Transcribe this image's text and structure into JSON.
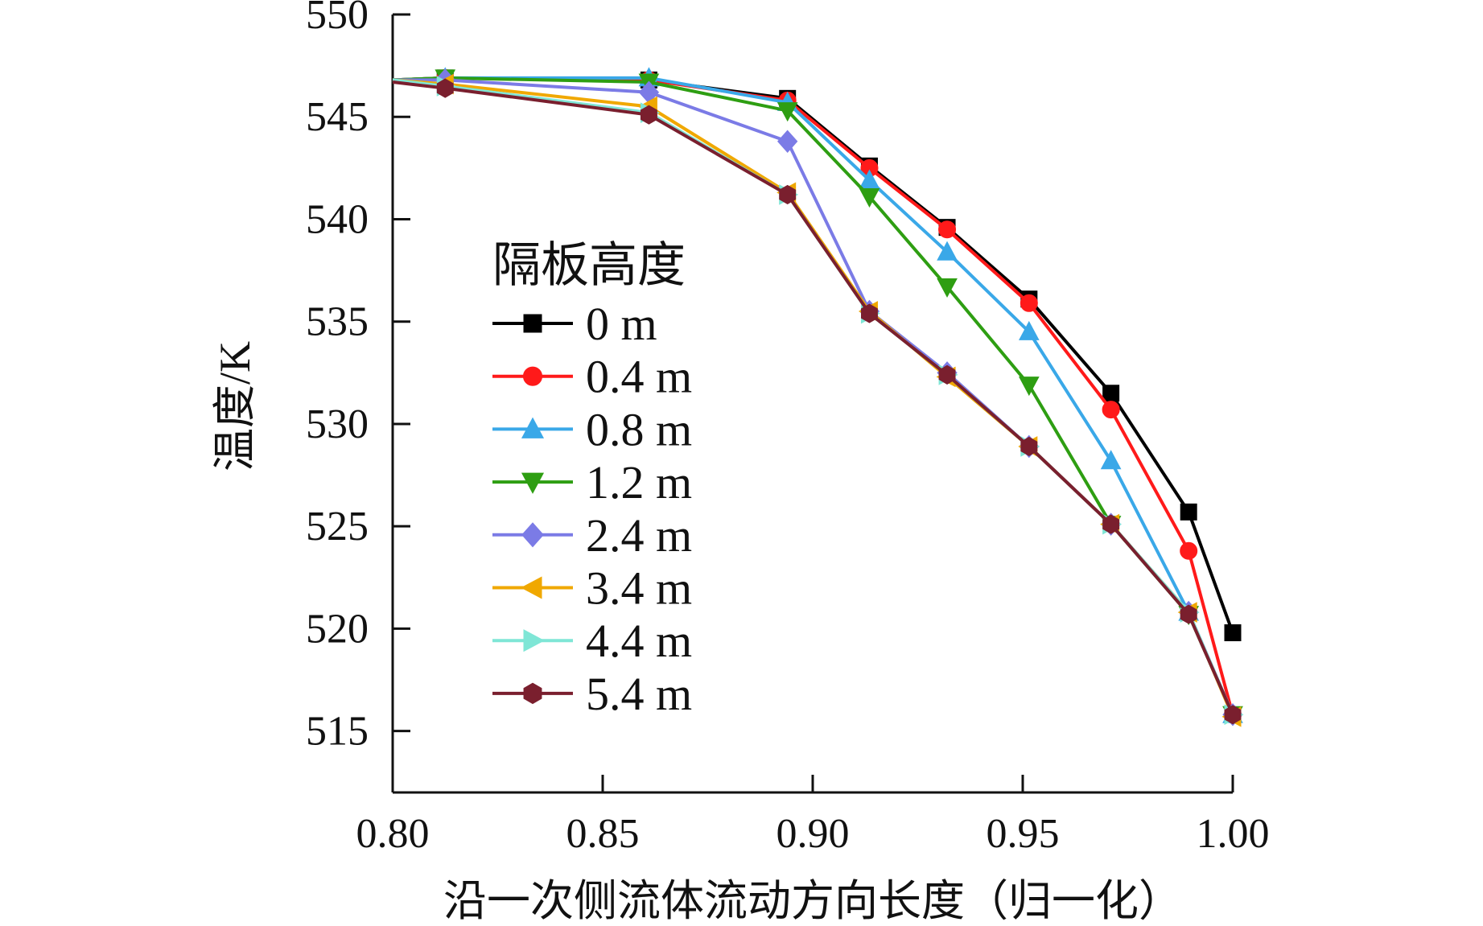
{
  "chart_data": {
    "type": "line",
    "title": "",
    "xlabel": "沿一次侧流体流动方向长度（归一化）",
    "ylabel": "温度/K",
    "xlim": [
      0.8,
      1.0
    ],
    "ylim": [
      512,
      550
    ],
    "xticks": [
      "0.80",
      "0.85",
      "0.90",
      "0.95",
      "1.00"
    ],
    "yticks": [
      "515",
      "520",
      "525",
      "530",
      "535",
      "540",
      "545",
      "550"
    ],
    "grid": false,
    "legend_title": "隔板高度",
    "legend_position": "center-left",
    "x": [
      0.8,
      0.8125,
      0.861,
      0.894,
      0.9135,
      0.932,
      0.9515,
      0.971,
      0.9895,
      1.0
    ],
    "series": [
      {
        "name": "0 m",
        "color": "#000000",
        "marker": "square",
        "values": [
          546.8,
          546.9,
          546.8,
          545.9,
          542.6,
          539.6,
          536.1,
          531.5,
          525.7,
          519.8
        ]
      },
      {
        "name": "0.4 m",
        "color": "#ff1a1a",
        "marker": "circle",
        "values": [
          546.8,
          546.9,
          546.8,
          545.8,
          542.5,
          539.5,
          535.9,
          530.7,
          523.8,
          515.8
        ]
      },
      {
        "name": "0.8 m",
        "color": "#3aa8e8",
        "marker": "triangle-up",
        "values": [
          546.8,
          546.9,
          546.9,
          545.7,
          541.9,
          538.4,
          534.5,
          528.2,
          520.8,
          515.8
        ]
      },
      {
        "name": "1.2 m",
        "color": "#2e9e12",
        "marker": "triangle-down",
        "values": [
          546.8,
          546.9,
          546.7,
          545.3,
          541.1,
          536.7,
          531.9,
          525.1,
          520.7,
          515.8
        ]
      },
      {
        "name": "2.4 m",
        "color": "#7b7be6",
        "marker": "diamond",
        "values": [
          546.8,
          546.8,
          546.2,
          543.8,
          535.5,
          532.5,
          528.9,
          525.1,
          520.8,
          515.8
        ]
      },
      {
        "name": "3.4 m",
        "color": "#f0a800",
        "marker": "triangle-left",
        "values": [
          546.8,
          546.6,
          545.5,
          541.3,
          535.5,
          532.3,
          528.9,
          525.1,
          520.8,
          515.7
        ]
      },
      {
        "name": "4.4 m",
        "color": "#7fe6d6",
        "marker": "triangle-right",
        "values": [
          546.8,
          546.5,
          545.2,
          541.2,
          535.4,
          532.4,
          528.9,
          525.1,
          520.8,
          515.8
        ]
      },
      {
        "name": "5.4 m",
        "color": "#7a1f2e",
        "marker": "hexagon",
        "values": [
          546.7,
          546.4,
          545.1,
          541.2,
          535.4,
          532.4,
          528.9,
          525.1,
          520.7,
          515.8
        ]
      }
    ]
  }
}
